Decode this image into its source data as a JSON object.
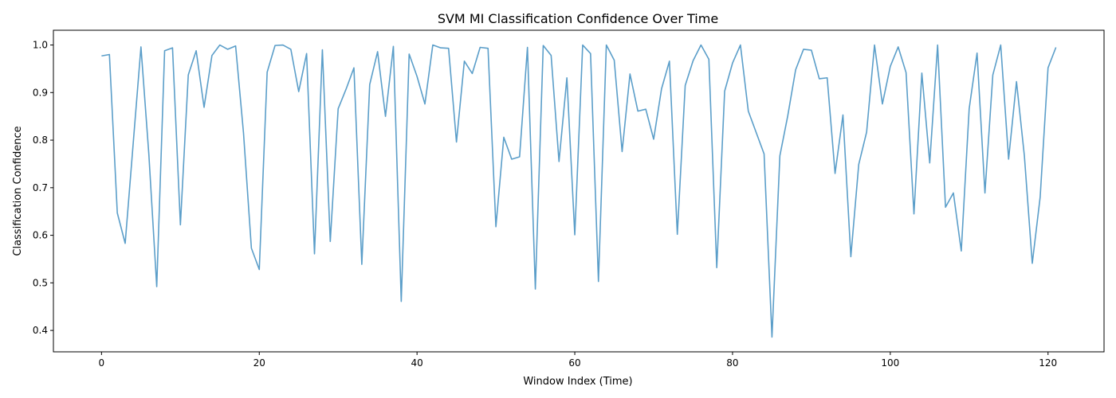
{
  "chart_data": {
    "type": "line",
    "title": "SVM MI Classification Confidence Over Time",
    "xlabel": "Window Index (Time)",
    "ylabel": "Classification Confidence",
    "xlim": [
      -6.1,
      127.1
    ],
    "ylim": [
      0.355,
      1.031
    ],
    "xticks": [
      0,
      20,
      40,
      60,
      80,
      100,
      120
    ],
    "yticks": [
      0.4,
      0.5,
      0.6,
      0.7,
      0.8,
      0.9,
      1.0
    ],
    "xtick_labels": [
      "0",
      "20",
      "40",
      "60",
      "80",
      "100",
      "120"
    ],
    "ytick_labels": [
      "0.4",
      "0.5",
      "0.6",
      "0.7",
      "0.8",
      "0.9",
      "1.0"
    ],
    "grid": false,
    "line_color": "#5b9ec9",
    "series": [
      {
        "x": [
          0,
          1,
          2,
          3,
          4,
          5,
          6,
          7,
          8,
          9,
          10,
          11,
          12,
          13,
          14,
          15,
          16,
          17,
          18,
          19,
          20,
          21,
          22,
          23,
          24,
          25,
          26,
          27,
          28,
          29,
          30,
          31,
          32,
          33,
          34,
          35,
          36,
          37,
          38,
          39,
          40,
          41,
          42,
          43,
          44,
          45,
          46,
          47,
          48,
          49,
          50,
          51,
          52,
          53,
          54,
          55,
          56,
          57,
          58,
          59,
          60,
          61,
          62,
          63,
          64,
          65,
          66,
          67,
          68,
          69,
          70,
          71,
          72,
          73,
          74,
          75,
          76,
          77,
          78,
          79,
          80,
          81,
          82,
          83,
          84,
          85,
          86,
          87,
          88,
          89,
          90,
          91,
          92,
          93,
          94,
          95,
          96,
          97,
          98,
          99,
          100,
          101,
          102,
          103,
          104,
          105,
          106,
          107,
          108,
          109,
          110,
          111,
          112,
          113,
          114,
          115,
          116,
          117,
          118,
          119,
          120,
          121
        ],
        "values": [
          0.977,
          0.98,
          0.647,
          0.583,
          0.79,
          0.996,
          0.77,
          0.492,
          0.988,
          0.994,
          0.622,
          0.937,
          0.988,
          0.869,
          0.978,
          1.0,
          0.991,
          0.998,
          0.815,
          0.573,
          0.528,
          0.943,
          0.999,
          1.0,
          0.991,
          0.902,
          0.982,
          0.561,
          0.99,
          0.587,
          0.866,
          0.907,
          0.952,
          0.539,
          0.917,
          0.986,
          0.85,
          0.997,
          0.461,
          0.981,
          0.934,
          0.876,
          1.0,
          0.994,
          0.993,
          0.796,
          0.966,
          0.94,
          0.995,
          0.993,
          0.618,
          0.806,
          0.76,
          0.765,
          0.995,
          0.487,
          0.999,
          0.978,
          0.755,
          0.931,
          0.601,
          1.0,
          0.982,
          0.503,
          1.0,
          0.968,
          0.776,
          0.939,
          0.861,
          0.865,
          0.802,
          0.908,
          0.966,
          0.602,
          0.915,
          0.967,
          1.0,
          0.97,
          0.532,
          0.903,
          0.962,
          1.0,
          0.861,
          0.816,
          0.771,
          0.386,
          0.767,
          0.851,
          0.948,
          0.991,
          0.989,
          0.929,
          0.931,
          0.73,
          0.853,
          0.555,
          0.749,
          0.817,
          1.0,
          0.876,
          0.955,
          0.996,
          0.942,
          0.645,
          0.941,
          0.752,
          1.0,
          0.659,
          0.689,
          0.567,
          0.866,
          0.983,
          0.689,
          0.937,
          1.0,
          0.76,
          0.923,
          0.767,
          0.541,
          0.68,
          0.952,
          0.995
        ]
      }
    ]
  }
}
